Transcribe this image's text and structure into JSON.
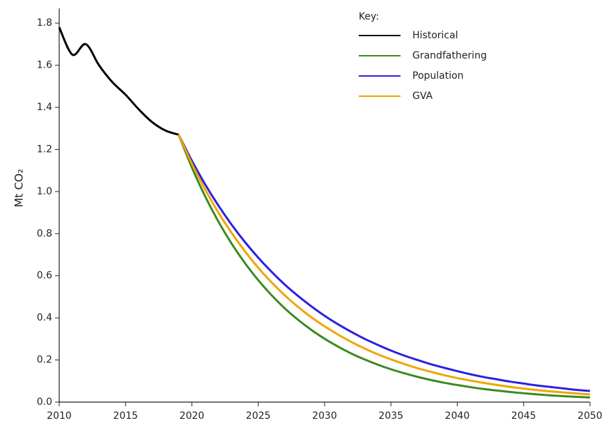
{
  "chart_data": {
    "type": "line",
    "ylabel": "Mt CO₂",
    "legend_title": "Key:",
    "x": [
      2010,
      2011,
      2012,
      2013,
      2014,
      2015,
      2016,
      2017,
      2018,
      2019,
      2020,
      2021,
      2022,
      2023,
      2024,
      2025,
      2026,
      2027,
      2028,
      2029,
      2030,
      2031,
      2032,
      2033,
      2034,
      2035,
      2036,
      2037,
      2038,
      2039,
      2040,
      2041,
      2042,
      2043,
      2044,
      2045,
      2046,
      2047,
      2048,
      2049,
      2050
    ],
    "xlim": [
      2010,
      2050
    ],
    "xticks": [
      2010,
      2015,
      2020,
      2025,
      2030,
      2035,
      2040,
      2045,
      2050
    ],
    "ylim": [
      0,
      1.87
    ],
    "yticks": [
      {
        "value": 0,
        "label": "0.0"
      },
      0.2,
      0.4,
      0.6,
      0.8,
      {
        "value": 1,
        "label": "1.0"
      },
      1.2,
      1.4,
      1.6,
      1.8
    ],
    "legend": "upper-right",
    "series": [
      {
        "name": "Historical",
        "color": "#000000",
        "values": [
          1.78,
          1.65,
          1.7,
          1.6,
          1.52,
          1.46,
          1.39,
          1.33,
          1.29,
          1.27,
          null,
          null,
          null,
          null,
          null,
          null,
          null,
          null,
          null,
          null,
          null,
          null,
          null,
          null,
          null,
          null,
          null,
          null,
          null,
          null,
          null,
          null,
          null,
          null,
          null,
          null,
          null,
          null,
          null,
          null,
          null
        ]
      },
      {
        "name": "Grandfathering",
        "color": "#3a8a1e",
        "values": [
          null,
          null,
          null,
          null,
          null,
          null,
          null,
          null,
          null,
          1.27,
          1.114,
          0.977,
          0.857,
          0.752,
          0.66,
          0.579,
          0.508,
          0.445,
          0.391,
          0.343,
          0.301,
          0.264,
          0.231,
          0.203,
          0.178,
          0.156,
          0.137,
          0.12,
          0.105,
          0.092,
          0.081,
          0.071,
          0.062,
          0.055,
          0.048,
          0.042,
          0.037,
          0.032,
          0.028,
          0.025,
          0.022
        ]
      },
      {
        "name": "Population",
        "color": "#2b1fe0",
        "values": [
          null,
          null,
          null,
          null,
          null,
          null,
          null,
          null,
          null,
          1.27,
          1.146,
          1.034,
          0.933,
          0.842,
          0.76,
          0.686,
          0.619,
          0.558,
          0.504,
          0.455,
          0.41,
          0.37,
          0.334,
          0.301,
          0.272,
          0.245,
          0.221,
          0.2,
          0.18,
          0.163,
          0.147,
          0.132,
          0.119,
          0.108,
          0.097,
          0.088,
          0.079,
          0.072,
          0.065,
          0.058,
          0.053
        ]
      },
      {
        "name": "GVA",
        "color": "#f0a500",
        "values": [
          null,
          null,
          null,
          null,
          null,
          null,
          null,
          null,
          null,
          1.27,
          1.132,
          1.01,
          0.9,
          0.803,
          0.716,
          0.638,
          0.569,
          0.507,
          0.452,
          0.403,
          0.36,
          0.321,
          0.286,
          0.255,
          0.227,
          0.203,
          0.181,
          0.161,
          0.144,
          0.128,
          0.114,
          0.102,
          0.091,
          0.081,
          0.072,
          0.064,
          0.057,
          0.051,
          0.046,
          0.041,
          0.036
        ]
      }
    ]
  }
}
